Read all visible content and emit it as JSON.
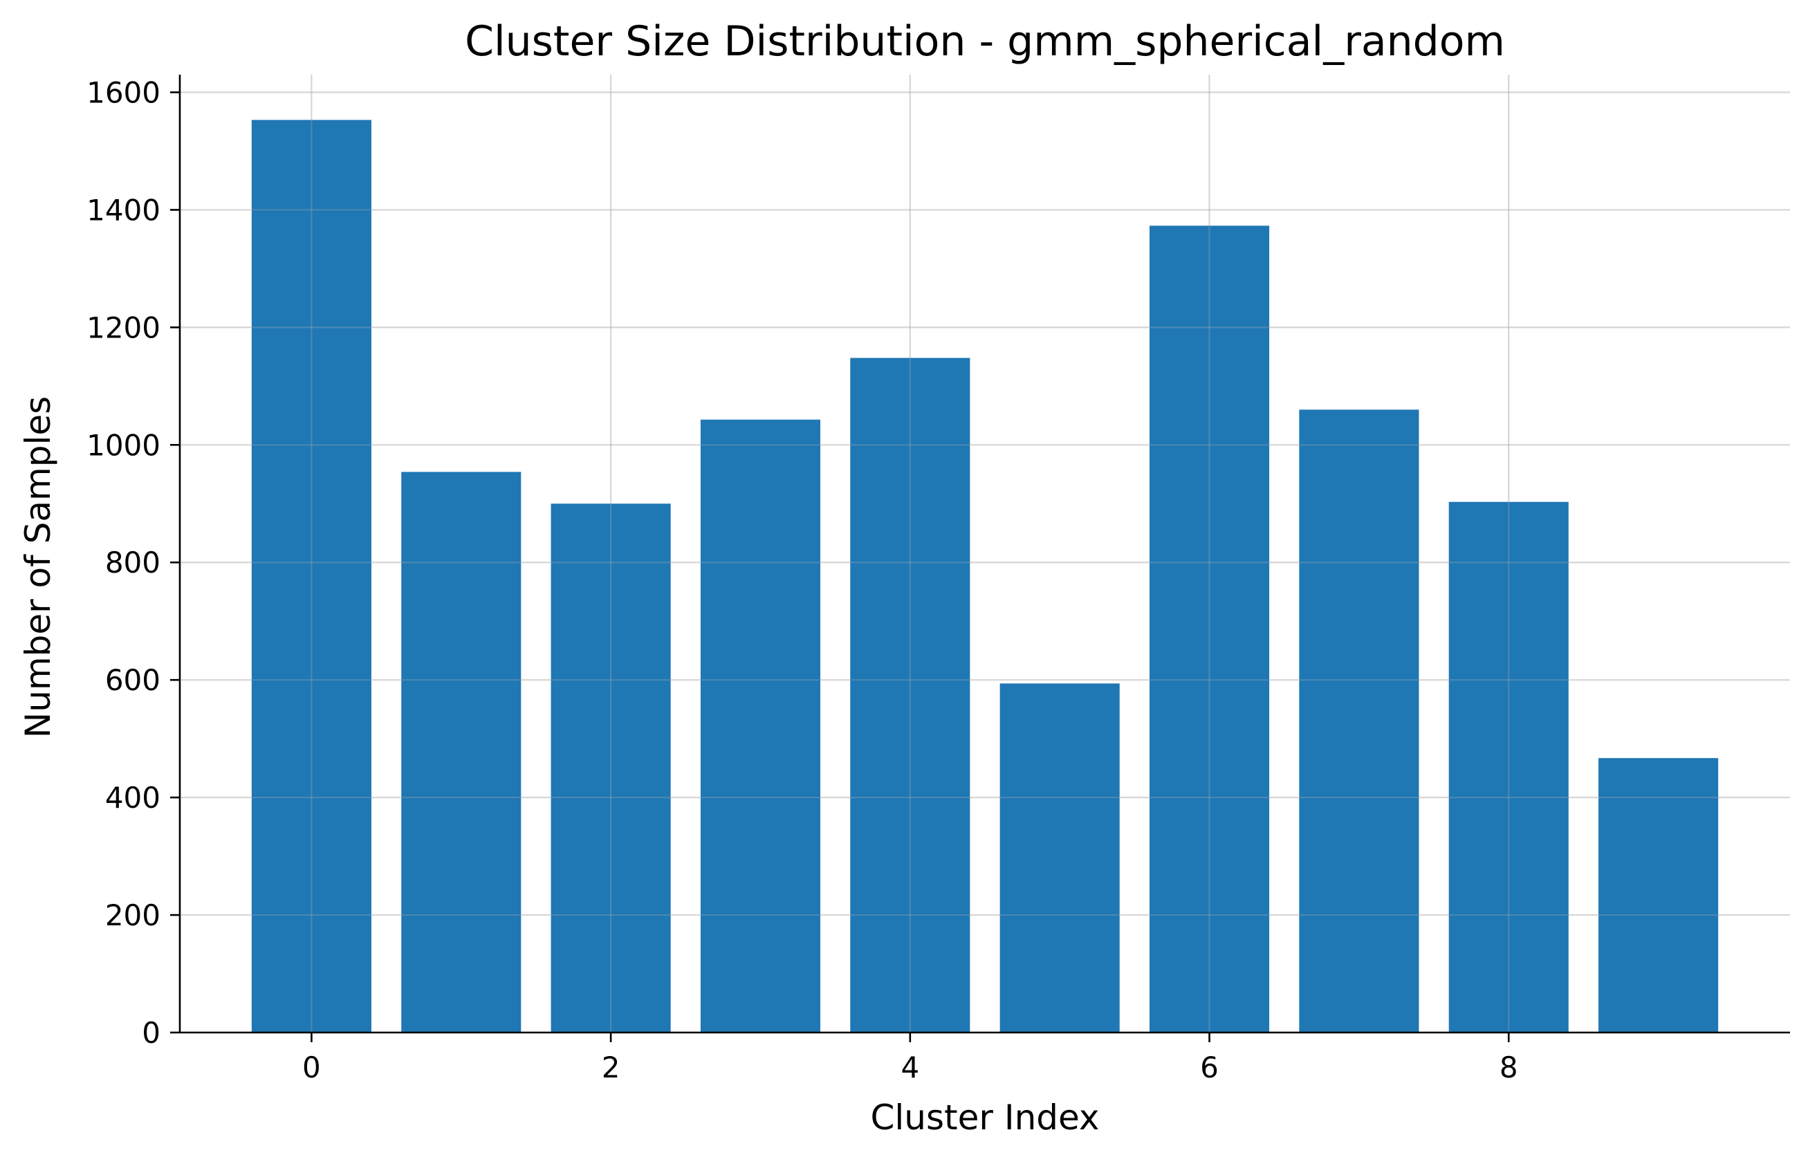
{
  "chart_data": {
    "type": "bar",
    "title": "Cluster Size Distribution - gmm_spherical_random",
    "xlabel": "Cluster Index",
    "ylabel": "Number of Samples",
    "categories": [
      0,
      1,
      2,
      3,
      4,
      5,
      6,
      7,
      8,
      9
    ],
    "values": [
      1553,
      954,
      900,
      1043,
      1148,
      594,
      1373,
      1060,
      903,
      467
    ],
    "xlim": [
      -0.88,
      9.88
    ],
    "ylim": [
      0,
      1630
    ],
    "xticks": [
      0,
      2,
      4,
      6,
      8
    ],
    "yticks": [
      0,
      200,
      400,
      600,
      800,
      1000,
      1200,
      1400,
      1600
    ],
    "bar_width": 0.8,
    "bar_color": "#1f77b4",
    "grid": true,
    "spines": [
      "left",
      "bottom"
    ]
  }
}
